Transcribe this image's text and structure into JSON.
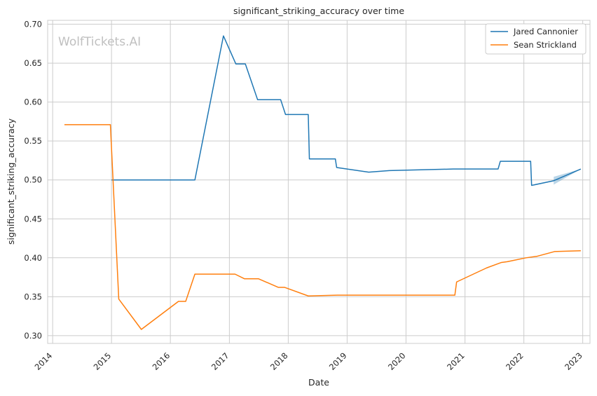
{
  "chart_data": {
    "type": "line",
    "title": "significant_striking_accuracy over time",
    "xlabel": "Date",
    "ylabel": "significant_striking_accuracy",
    "watermark": "WolfTickets.AI",
    "xlim": [
      "2013-12-01",
      "2023-02-15"
    ],
    "ylim": [
      0.29,
      0.705
    ],
    "x_ticks": [
      "2014",
      "2015",
      "2016",
      "2017",
      "2018",
      "2019",
      "2020",
      "2021",
      "2022",
      "2023"
    ],
    "y_ticks": [
      "0.30",
      "0.35",
      "0.40",
      "0.45",
      "0.50",
      "0.55",
      "0.60",
      "0.65",
      "0.70"
    ],
    "grid": true,
    "legend_position": "top-right",
    "series": [
      {
        "name": "Jared Cannonier",
        "color": "#1f77b4",
        "points": [
          [
            "2015-01-01",
            0.5
          ],
          [
            "2016-06-01",
            0.5
          ],
          [
            "2016-11-25",
            0.685
          ],
          [
            "2017-02-10",
            0.649
          ],
          [
            "2017-04-10",
            0.649
          ],
          [
            "2017-06-25",
            0.603
          ],
          [
            "2017-11-15",
            0.603
          ],
          [
            "2017-12-15",
            0.584
          ],
          [
            "2018-05-05",
            0.584
          ],
          [
            "2018-05-12",
            0.527
          ],
          [
            "2018-10-20",
            0.527
          ],
          [
            "2018-10-28",
            0.516
          ],
          [
            "2019-05-15",
            0.51
          ],
          [
            "2019-09-20",
            0.512
          ],
          [
            "2020-10-20",
            0.514
          ],
          [
            "2021-07-25",
            0.514
          ],
          [
            "2021-08-08",
            0.524
          ],
          [
            "2022-02-12",
            0.524
          ],
          [
            "2022-02-18",
            0.493
          ],
          [
            "2022-07-05",
            0.499
          ],
          [
            "2022-12-20",
            0.514
          ]
        ],
        "confidence_band": [
          [
            "2022-07-05",
            0.494,
            0.504
          ],
          [
            "2022-12-20",
            0.514,
            0.514
          ]
        ]
      },
      {
        "name": "Sean Strickland",
        "color": "#ff7f0e",
        "points": [
          [
            "2014-03-15",
            0.571
          ],
          [
            "2014-12-25",
            0.571
          ],
          [
            "2015-02-15",
            0.347
          ],
          [
            "2015-07-05",
            0.308
          ],
          [
            "2016-02-20",
            0.344
          ],
          [
            "2016-04-05",
            0.344
          ],
          [
            "2016-06-01",
            0.379
          ],
          [
            "2017-02-05",
            0.379
          ],
          [
            "2017-04-05",
            0.373
          ],
          [
            "2017-07-01",
            0.373
          ],
          [
            "2017-11-01",
            0.362
          ],
          [
            "2017-12-10",
            0.362
          ],
          [
            "2018-05-05",
            0.351
          ],
          [
            "2018-11-01",
            0.352
          ],
          [
            "2020-10-20",
            0.352
          ],
          [
            "2020-10-30",
            0.352
          ],
          [
            "2020-11-10",
            0.369
          ],
          [
            "2021-05-15",
            0.387
          ],
          [
            "2021-08-15",
            0.394
          ],
          [
            "2021-09-20",
            0.395
          ],
          [
            "2022-01-15",
            0.4
          ],
          [
            "2022-03-25",
            0.402
          ],
          [
            "2022-07-10",
            0.408
          ],
          [
            "2022-12-20",
            0.409
          ]
        ]
      }
    ]
  }
}
